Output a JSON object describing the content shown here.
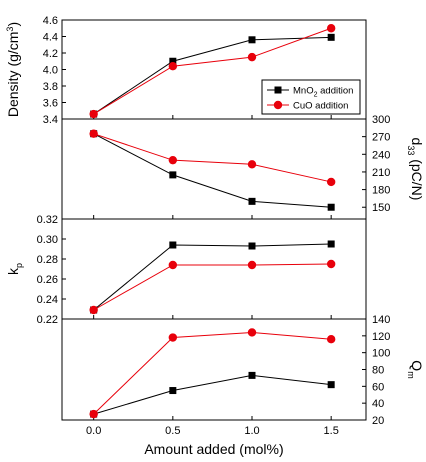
{
  "chart_data": {
    "type": "line",
    "x": [
      0.0,
      0.5,
      1.0,
      1.5
    ],
    "xlabel": "Amount added (mol%)",
    "xlim": [
      -0.2,
      1.72
    ],
    "x_ticks": [
      0.0,
      0.5,
      1.0,
      1.5
    ],
    "x_tick_labels": [
      "0.0",
      "0.5",
      "1.0",
      "1.5"
    ],
    "grid": false,
    "colors": {
      "MnO2": "#000000",
      "CuO": "#e8000b",
      "axis": "#000000"
    },
    "panels": [
      {
        "id": "density",
        "ylabel_main": "Density (g/cm",
        "ylabel_sup": "3",
        "ylabel_tail": ")",
        "axis_side": "left",
        "ylim": [
          3.4,
          4.6
        ],
        "ticks": [
          3.4,
          3.6,
          3.8,
          4.0,
          4.2,
          4.4,
          4.6
        ],
        "tick_labels": [
          "3.4",
          "3.6",
          "3.8",
          "4.0",
          "4.2",
          "4.4",
          "4.6"
        ],
        "legend": {
          "placement": "lower-right",
          "entries": [
            {
              "series": "MnO2",
              "label": "MnO",
              "sub": "2",
              "tail": " addition"
            },
            {
              "series": "CuO",
              "label": "CuO addition",
              "sub": "",
              "tail": ""
            }
          ]
        },
        "series": [
          {
            "key": "MnO2",
            "marker": "square",
            "values": [
              3.46,
              4.1,
              4.36,
              4.39
            ]
          },
          {
            "key": "CuO",
            "marker": "circle",
            "values": [
              3.46,
              4.04,
              4.15,
              4.5
            ]
          }
        ]
      },
      {
        "id": "d33",
        "ylabel_main": "d",
        "ylabel_sub": "33",
        "ylabel_tail": " (pC/N)",
        "axis_side": "right",
        "ylim": [
          130,
          300
        ],
        "ticks": [
          150,
          180,
          210,
          240,
          270,
          300
        ],
        "tick_labels": [
          "150",
          "180",
          "210",
          "240",
          "270",
          "300"
        ],
        "series": [
          {
            "key": "MnO2",
            "marker": "square",
            "values": [
              275,
              205,
              160,
              150
            ]
          },
          {
            "key": "CuO",
            "marker": "circle",
            "values": [
              275,
              230,
              223,
              193
            ]
          }
        ]
      },
      {
        "id": "kp",
        "ylabel_main": "k",
        "ylabel_sub": "p",
        "ylabel_tail": "",
        "axis_side": "left",
        "ylim": [
          0.22,
          0.32
        ],
        "ticks": [
          0.22,
          0.24,
          0.26,
          0.28,
          0.3,
          0.32
        ],
        "tick_labels": [
          "0.22",
          "0.24",
          "0.26",
          "0.28",
          "0.30",
          "0.32"
        ],
        "series": [
          {
            "key": "MnO2",
            "marker": "square",
            "values": [
              0.229,
              0.294,
              0.293,
              0.295
            ]
          },
          {
            "key": "CuO",
            "marker": "circle",
            "values": [
              0.229,
              0.274,
              0.274,
              0.275
            ]
          }
        ]
      },
      {
        "id": "qm",
        "ylabel_main": "Q",
        "ylabel_sub": "m",
        "ylabel_tail": "",
        "axis_side": "right",
        "ylim": [
          20,
          140
        ],
        "ticks": [
          20,
          40,
          60,
          80,
          100,
          120,
          140
        ],
        "tick_labels": [
          "20",
          "40",
          "60",
          "80",
          "100",
          "120",
          "140"
        ],
        "series": [
          {
            "key": "MnO2",
            "marker": "square",
            "values": [
              27,
              55,
              73,
              62
            ]
          },
          {
            "key": "CuO",
            "marker": "circle",
            "values": [
              27,
              118,
              124,
              116
            ]
          }
        ]
      }
    ]
  }
}
